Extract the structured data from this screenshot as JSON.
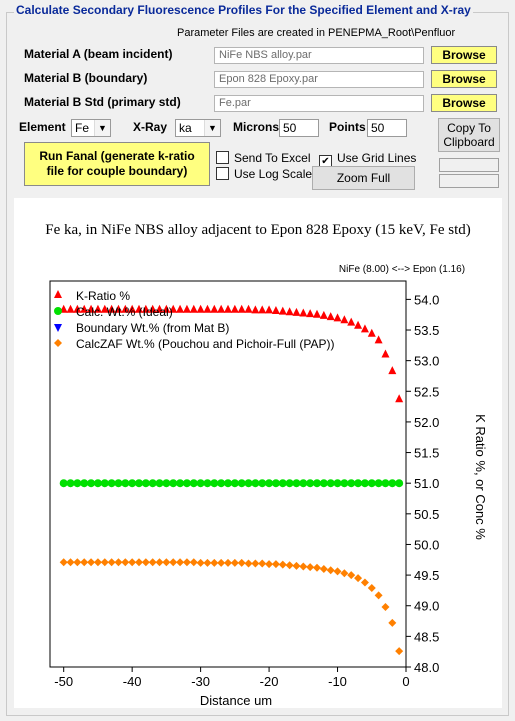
{
  "group_title": "Calculate Secondary Fluorescence Profiles For the Specified Element and X-ray",
  "param_note": "Parameter Files are created in PENEPMA_Root\\Penfluor",
  "materials": [
    {
      "label": "Material A (beam incident)",
      "value": "NiFe NBS alloy.par",
      "browse": "Browse"
    },
    {
      "label": "Material B (boundary)",
      "value": "Epon 828 Epoxy.par",
      "browse": "Browse"
    },
    {
      "label": "Material B Std (primary std)",
      "value": "Fe.par",
      "browse": "Browse"
    }
  ],
  "element": {
    "label": "Element",
    "value": "Fe"
  },
  "xray": {
    "label": "X-Ray",
    "value": "ka"
  },
  "microns": {
    "label": "Microns",
    "value": "50"
  },
  "points": {
    "label": "Points",
    "value": "50"
  },
  "copy_button": {
    "line1": "Copy To",
    "line2": "Clipboard"
  },
  "run_button": {
    "line1": "Run Fanal (generate k-ratio",
    "line2": "file for couple boundary)"
  },
  "options": {
    "send_to_excel": {
      "label": "Send To Excel",
      "checked": false
    },
    "use_log_scale": {
      "label": "Use Log Scale",
      "checked": false
    },
    "use_grid_lines": {
      "label": "Use Grid Lines",
      "checked": true
    }
  },
  "zoom_full": "Zoom Full",
  "chart_data": {
    "type": "scatter",
    "title": "Fe ka, in NiFe NBS alloy adjacent to Epon 828 Epoxy (15 keV, Fe std)",
    "subtitle": "NiFe  (8.00) <--> Epon  (1.16)",
    "xlabel": "Distance um",
    "ylabel": "K Ratio %, or Conc %",
    "xlim": [
      -52,
      0
    ],
    "ylim": [
      48,
      54.3
    ],
    "x_ticks": [
      -50,
      -40,
      -30,
      -20,
      -10,
      0
    ],
    "y_ticks": [
      48.0,
      48.5,
      49.0,
      49.5,
      50.0,
      50.5,
      51.0,
      51.5,
      52.0,
      52.5,
      53.0,
      53.5,
      54.0
    ],
    "y_axis_side": "right",
    "grid": false,
    "legend_position": "top-left",
    "series": [
      {
        "name": "K-Ratio %",
        "marker": "triangle-up",
        "color": "#ff0000",
        "x": [
          -50,
          -49,
          -48,
          -47,
          -46,
          -45,
          -44,
          -43,
          -42,
          -41,
          -40,
          -39,
          -38,
          -37,
          -36,
          -35,
          -34,
          -33,
          -32,
          -31,
          -30,
          -29,
          -28,
          -27,
          -26,
          -25,
          -24,
          -23,
          -22,
          -21,
          -20,
          -19,
          -18,
          -17,
          -16,
          -15,
          -14,
          -13,
          -12,
          -11,
          -10,
          -9,
          -8,
          -7,
          -6,
          -5,
          -4,
          -3,
          -2,
          -1
        ],
        "y": [
          53.83,
          53.83,
          53.83,
          53.83,
          53.83,
          53.83,
          53.83,
          53.83,
          53.83,
          53.83,
          53.83,
          53.83,
          53.83,
          53.83,
          53.83,
          53.83,
          53.83,
          53.83,
          53.83,
          53.83,
          53.83,
          53.83,
          53.83,
          53.83,
          53.83,
          53.83,
          53.83,
          53.83,
          53.82,
          53.82,
          53.82,
          53.81,
          53.8,
          53.79,
          53.78,
          53.77,
          53.76,
          53.75,
          53.73,
          53.71,
          53.69,
          53.66,
          53.62,
          53.57,
          53.51,
          53.44,
          53.33,
          53.1,
          52.83,
          52.37
        ]
      },
      {
        "name": "Calc. Wt.% (Ideal)",
        "marker": "circle",
        "color": "#00e000",
        "x": [
          -50,
          -49,
          -48,
          -47,
          -46,
          -45,
          -44,
          -43,
          -42,
          -41,
          -40,
          -39,
          -38,
          -37,
          -36,
          -35,
          -34,
          -33,
          -32,
          -31,
          -30,
          -29,
          -28,
          -27,
          -26,
          -25,
          -24,
          -23,
          -22,
          -21,
          -20,
          -19,
          -18,
          -17,
          -16,
          -15,
          -14,
          -13,
          -12,
          -11,
          -10,
          -9,
          -8,
          -7,
          -6,
          -5,
          -4,
          -3,
          -2,
          -1
        ],
        "y": [
          51,
          51,
          51,
          51,
          51,
          51,
          51,
          51,
          51,
          51,
          51,
          51,
          51,
          51,
          51,
          51,
          51,
          51,
          51,
          51,
          51,
          51,
          51,
          51,
          51,
          51,
          51,
          51,
          51,
          51,
          51,
          51,
          51,
          51,
          51,
          51,
          51,
          51,
          51,
          51,
          51,
          51,
          51,
          51,
          51,
          51,
          51,
          51,
          51,
          51
        ]
      },
      {
        "name": "Boundary Wt.% (from Mat B)",
        "marker": "triangle-down",
        "color": "#0000ff",
        "x": [],
        "y": []
      },
      {
        "name": "CalcZAF Wt.% (Pouchou and Pichoir-Full (PAP))",
        "marker": "diamond",
        "color": "#ff8000",
        "x": [
          -50,
          -49,
          -48,
          -47,
          -46,
          -45,
          -44,
          -43,
          -42,
          -41,
          -40,
          -39,
          -38,
          -37,
          -36,
          -35,
          -34,
          -33,
          -32,
          -31,
          -30,
          -29,
          -28,
          -27,
          -26,
          -25,
          -24,
          -23,
          -22,
          -21,
          -20,
          -19,
          -18,
          -17,
          -16,
          -15,
          -14,
          -13,
          -12,
          -11,
          -10,
          -9,
          -8,
          -7,
          -6,
          -5,
          -4,
          -3,
          -2,
          -1
        ],
        "y": [
          49.71,
          49.71,
          49.71,
          49.71,
          49.71,
          49.71,
          49.71,
          49.71,
          49.71,
          49.71,
          49.71,
          49.71,
          49.71,
          49.71,
          49.71,
          49.71,
          49.71,
          49.71,
          49.71,
          49.71,
          49.7,
          49.7,
          49.7,
          49.7,
          49.7,
          49.7,
          49.7,
          49.69,
          49.69,
          49.69,
          49.68,
          49.68,
          49.67,
          49.66,
          49.65,
          49.64,
          49.63,
          49.62,
          49.6,
          49.58,
          49.56,
          49.53,
          49.5,
          49.45,
          49.38,
          49.29,
          49.17,
          48.98,
          48.72,
          48.26
        ]
      }
    ]
  }
}
